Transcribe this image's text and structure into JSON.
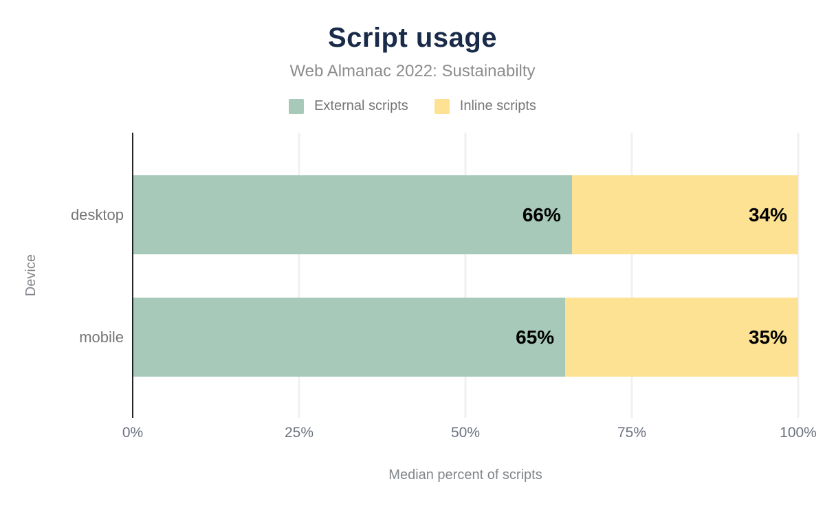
{
  "chart_data": {
    "type": "bar",
    "orientation": "horizontal",
    "stacked": true,
    "title": "Script usage",
    "subtitle": "Web Almanac 2022: Sustainabilty",
    "xlabel": "Median percent of scripts",
    "ylabel": "Device",
    "categories": [
      "desktop",
      "mobile"
    ],
    "series": [
      {
        "name": "External scripts",
        "color": "#a7c9ba",
        "values": [
          66,
          65
        ]
      },
      {
        "name": "Inline scripts",
        "color": "#fde294",
        "values": [
          34,
          35
        ]
      }
    ],
    "value_label_suffix": "%",
    "x_ticks": [
      "0%",
      "25%",
      "50%",
      "75%",
      "100%"
    ],
    "xlim": [
      0,
      100
    ],
    "legend_position": "top",
    "grid": "vertical"
  },
  "colors": {
    "title": "#1a2b49",
    "subtitle": "#8c8c8c",
    "muted_text": "#757575",
    "axis_line": "#1f2226",
    "gridline": "#f0f0f0",
    "bar_label": "#000000",
    "background": "#ffffff"
  }
}
